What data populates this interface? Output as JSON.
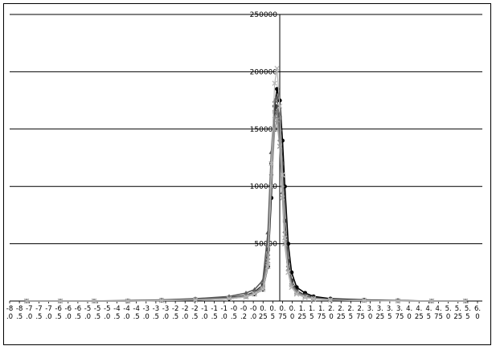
{
  "chart_data": {
    "type": "line",
    "title": "",
    "xlabel": "",
    "ylabel": "",
    "ylim": [
      0,
      250000
    ],
    "y_ticks": [
      "250000",
      "200000",
      "150000",
      "100000",
      "50000"
    ],
    "x_tick_labels": [
      "-8.0",
      "-8.5",
      "-7.0",
      "-7.5",
      "-7.0",
      "-6.5",
      "-6.0",
      "-6.5",
      "-5.0",
      "-5.5",
      "-5.0",
      "-4.5",
      "-4.0",
      "-4.5",
      "-3.0",
      "-3.5",
      "-3.0",
      "-2.5",
      "-2.0",
      "-2.5",
      "-1.0",
      "-1.5",
      "-1.0",
      "-0.5",
      "-0.2",
      "-0.0",
      "0.25",
      "0.5",
      "0.75",
      "0.0",
      "1.25",
      "1.5",
      "1.75",
      "2.0",
      "2.25",
      "2.5",
      "2.75",
      "3.0",
      "3.25",
      "3.5",
      "3.75",
      "4.0",
      "4.25",
      "4.5",
      "4.75",
      "5.0",
      "5.25",
      "5.5",
      "6.0"
    ],
    "grid": true,
    "legend": "none",
    "colors": [
      "#000000",
      "#3a3a3a",
      "#5a5a5a",
      "#7a7a7a",
      "#9a9a9a",
      "#b8b8b8"
    ],
    "series": [
      {
        "x": [
          -7.5,
          -6.5,
          -5.5,
          -4.5,
          -3.5,
          -2.5,
          -1.5,
          -1.0,
          -0.75,
          -0.5,
          -0.35,
          -0.25,
          -0.15,
          -0.08,
          0.0,
          0.08,
          0.15,
          0.25,
          0.35,
          0.5,
          0.75,
          1.0,
          1.5,
          2.5,
          3.5,
          4.5,
          5.5
        ],
        "y": [
          0,
          0,
          0,
          0,
          500,
          1000,
          2000,
          4000,
          6000,
          10000,
          30000,
          90000,
          170000,
          185000,
          175000,
          140000,
          100000,
          50000,
          25000,
          12000,
          7000,
          4000,
          2000,
          1000,
          500,
          0,
          0
        ]
      },
      {
        "x": [
          -7.5,
          -6.5,
          -5.5,
          -4.5,
          -3.5,
          -2.5,
          -1.5,
          -1.0,
          -0.75,
          -0.5,
          -0.35,
          -0.25,
          -0.15,
          -0.08,
          0.0,
          0.08,
          0.15,
          0.25,
          0.35,
          0.5,
          0.75,
          1.0,
          1.5,
          2.5,
          3.5,
          4.5,
          5.5
        ],
        "y": [
          0,
          0,
          0,
          0,
          800,
          1500,
          3000,
          5000,
          8000,
          14000,
          45000,
          120000,
          165000,
          170000,
          160000,
          120000,
          70000,
          35000,
          18000,
          9000,
          5000,
          3000,
          1500,
          800,
          300,
          0,
          0
        ]
      },
      {
        "x": [
          -7.5,
          -6.5,
          -5.5,
          -4.5,
          -3.5,
          -2.5,
          -1.5,
          -1.0,
          -0.75,
          -0.5,
          -0.35,
          -0.25,
          -0.15,
          -0.08,
          0.0,
          0.08,
          0.15,
          0.25,
          0.35,
          0.5,
          0.75,
          1.0,
          1.5,
          2.5,
          3.5,
          4.5,
          5.5
        ],
        "y": [
          0,
          0,
          0,
          500,
          1000,
          2000,
          4000,
          7000,
          10000,
          18000,
          60000,
          130000,
          175000,
          178000,
          150000,
          95000,
          55000,
          28000,
          14000,
          8000,
          4500,
          2500,
          1200,
          600,
          200,
          0,
          0
        ]
      },
      {
        "x": [
          -7.5,
          -6.5,
          -5.5,
          -4.5,
          -3.5,
          -2.5,
          -1.5,
          -1.0,
          -0.75,
          -0.5,
          -0.35,
          -0.25,
          -0.15,
          -0.08,
          0.0,
          0.08,
          0.15,
          0.25,
          0.35,
          0.5,
          0.75,
          1.0,
          1.5,
          2.5,
          3.5,
          4.5,
          5.5
        ],
        "y": [
          0,
          0,
          0,
          0,
          600,
          1200,
          2500,
          4500,
          7000,
          12000,
          40000,
          110000,
          160000,
          165000,
          140000,
          100000,
          60000,
          30000,
          15000,
          8000,
          4000,
          2500,
          1200,
          500,
          200,
          0,
          0
        ]
      },
      {
        "x": [
          -7.5,
          -6.5,
          -5.5,
          -4.5,
          -3.5,
          -2.5,
          -1.5,
          -1.0,
          -0.75,
          -0.5,
          -0.35,
          -0.25,
          -0.15,
          -0.08,
          0.0,
          0.08,
          0.15,
          0.25,
          0.35,
          0.5,
          0.75,
          1.0,
          1.5,
          2.5,
          3.5,
          4.5,
          5.5
        ],
        "y": [
          0,
          0,
          0,
          0,
          500,
          1000,
          2200,
          4000,
          6500,
          11000,
          35000,
          100000,
          150000,
          158000,
          135000,
          90000,
          50000,
          25000,
          12000,
          7000,
          3500,
          2000,
          1000,
          500,
          200,
          0,
          0
        ]
      },
      {
        "x": [
          -7.5,
          -6.5,
          -5.5,
          -4.5,
          -3.5,
          -2.5,
          -1.5,
          -1.0,
          -0.75,
          -0.5,
          -0.35,
          -0.25,
          -0.15,
          -0.08,
          0.0,
          0.08,
          0.15,
          0.25,
          0.35,
          0.5,
          0.75,
          1.0,
          1.5,
          2.5,
          3.5,
          4.5,
          5.5
        ],
        "y": [
          0,
          0,
          0,
          0,
          400,
          900,
          2000,
          3500,
          6000,
          10000,
          30000,
          120000,
          190000,
          203000,
          170000,
          110000,
          55000,
          25000,
          12000,
          6000,
          3000,
          1800,
          900,
          400,
          100,
          0,
          0
        ]
      }
    ]
  }
}
